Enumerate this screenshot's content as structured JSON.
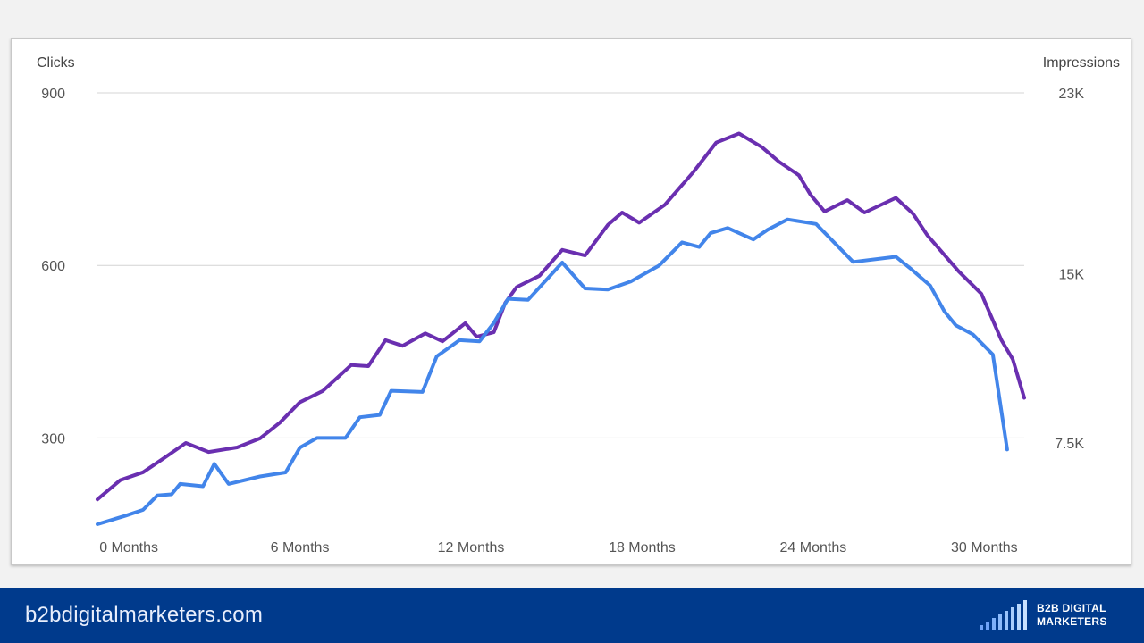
{
  "chart_data": {
    "type": "line",
    "left_axis": {
      "label": "Clicks",
      "ylim": [
        150,
        900
      ],
      "ticks": [
        300,
        600,
        900
      ],
      "tick_labels": [
        "300",
        "600",
        "900"
      ]
    },
    "right_axis": {
      "label": "Impressions",
      "ylim": [
        3900,
        23000
      ],
      "ticks": [
        7500,
        15000,
        23000
      ],
      "tick_labels": [
        "7.5K",
        "15K",
        "23K"
      ]
    },
    "x": {
      "range": [
        -1.1,
        31.4
      ],
      "ticks": [
        0,
        6,
        12,
        18,
        24,
        30
      ],
      "tick_labels": [
        "0 Months",
        "6 Months",
        "12 Months",
        "18 Months",
        "24 Months",
        "30 Months"
      ]
    },
    "series": [
      {
        "name": "Impressions",
        "axis": "right",
        "color": "#6a2fb0",
        "points": [
          [
            -1.1,
            5000
          ],
          [
            -0.3,
            5850
          ],
          [
            0.5,
            6200
          ],
          [
            1.2,
            6800
          ],
          [
            2.0,
            7500
          ],
          [
            2.8,
            7100
          ],
          [
            3.8,
            7300
          ],
          [
            4.6,
            7700
          ],
          [
            5.3,
            8400
          ],
          [
            6.0,
            9300
          ],
          [
            6.8,
            9800
          ],
          [
            7.8,
            10950
          ],
          [
            8.4,
            10900
          ],
          [
            9.0,
            12050
          ],
          [
            9.6,
            11800
          ],
          [
            10.4,
            12350
          ],
          [
            11.0,
            12000
          ],
          [
            11.8,
            12800
          ],
          [
            12.2,
            12200
          ],
          [
            12.8,
            12400
          ],
          [
            13.2,
            13700
          ],
          [
            13.6,
            14400
          ],
          [
            14.4,
            14900
          ],
          [
            15.2,
            16050
          ],
          [
            16.0,
            15800
          ],
          [
            16.8,
            17150
          ],
          [
            17.3,
            17700
          ],
          [
            17.9,
            17250
          ],
          [
            18.8,
            18050
          ],
          [
            19.8,
            19500
          ],
          [
            20.6,
            20800
          ],
          [
            21.4,
            21200
          ],
          [
            22.2,
            20600
          ],
          [
            22.8,
            19950
          ],
          [
            23.5,
            19350
          ],
          [
            23.9,
            18500
          ],
          [
            24.4,
            17750
          ],
          [
            25.2,
            18250
          ],
          [
            25.8,
            17700
          ],
          [
            26.9,
            18350
          ],
          [
            27.5,
            17650
          ],
          [
            28.0,
            16700
          ],
          [
            29.1,
            15100
          ],
          [
            29.9,
            14100
          ],
          [
            30.6,
            12050
          ],
          [
            31.0,
            11200
          ],
          [
            31.4,
            9500
          ]
        ]
      },
      {
        "name": "Clicks",
        "axis": "left",
        "color": "#4285ea",
        "points": [
          [
            -1.1,
            150
          ],
          [
            -0.1,
            165
          ],
          [
            0.5,
            175
          ],
          [
            1.0,
            200
          ],
          [
            1.5,
            202
          ],
          [
            1.8,
            220
          ],
          [
            2.6,
            216
          ],
          [
            3.0,
            255
          ],
          [
            3.5,
            220
          ],
          [
            4.6,
            233
          ],
          [
            5.5,
            240
          ],
          [
            6.0,
            283
          ],
          [
            6.6,
            300
          ],
          [
            7.6,
            300
          ],
          [
            8.1,
            336
          ],
          [
            8.8,
            340
          ],
          [
            9.2,
            382
          ],
          [
            10.3,
            380
          ],
          [
            10.8,
            442
          ],
          [
            11.6,
            470
          ],
          [
            12.3,
            468
          ],
          [
            12.8,
            500
          ],
          [
            13.3,
            542
          ],
          [
            14.0,
            540
          ],
          [
            15.2,
            605
          ],
          [
            16.0,
            560
          ],
          [
            16.8,
            558
          ],
          [
            17.6,
            572
          ],
          [
            18.6,
            600
          ],
          [
            19.4,
            640
          ],
          [
            20.0,
            632
          ],
          [
            20.4,
            656
          ],
          [
            21.0,
            665
          ],
          [
            21.9,
            645
          ],
          [
            22.4,
            662
          ],
          [
            23.1,
            680
          ],
          [
            24.1,
            672
          ],
          [
            25.4,
            606
          ],
          [
            26.9,
            615
          ],
          [
            27.4,
            595
          ],
          [
            28.1,
            565
          ],
          [
            28.6,
            520
          ],
          [
            29.0,
            496
          ],
          [
            29.6,
            480
          ],
          [
            30.3,
            445
          ],
          [
            30.8,
            280
          ]
        ]
      }
    ]
  },
  "footer": {
    "url": "b2bdigitalmarketers.com",
    "brand_line1": "B2B DIGITAL",
    "brand_line2": "MARKETERS",
    "colors": {
      "background": "#003a8c",
      "page": "#f2f2f2"
    }
  }
}
